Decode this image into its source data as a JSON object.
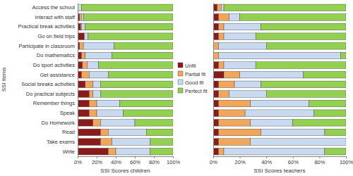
{
  "chart_data": [
    {
      "type": "bar",
      "orientation": "horizontal",
      "stacked": true,
      "legend": "right",
      "xlabel": "SSI Scores children",
      "ylabel": "SSI Items",
      "categories": [
        "Access the school",
        "Interact with staff",
        "Practical break activities",
        "Go on field trips",
        "Participate in classroom",
        "Do mathematics",
        "Do sport activities",
        "Get assistance",
        "Social breaks activities",
        "Do practical subjects",
        "Remember things",
        "Speak",
        "Do Homework",
        "Read",
        "Take exams",
        "Write"
      ],
      "series": [
        {
          "name": "Unfit",
          "color": "#8b1a1a",
          "values": [
            0,
            2,
            3,
            7,
            2,
            4,
            5,
            4,
            8,
            12,
            12,
            12,
            16,
            24,
            24,
            32
          ]
        },
        {
          "name": "Partial fit",
          "color": "#f2a65a",
          "values": [
            0,
            2,
            1,
            0,
            4,
            4,
            5,
            8,
            8,
            4,
            8,
            8,
            8,
            8,
            12,
            8
          ]
        },
        {
          "name": "Good fit",
          "color": "#c9daf0",
          "values": [
            4,
            2,
            4,
            4,
            32,
            28,
            12,
            20,
            8,
            8,
            24,
            28,
            36,
            40,
            40,
            36
          ]
        },
        {
          "name": "Perfect fit",
          "color": "#92d050",
          "values": [
            96,
            94,
            92,
            89,
            62,
            64,
            78,
            68,
            76,
            76,
            56,
            52,
            40,
            28,
            24,
            24
          ]
        }
      ],
      "xlim": [
        0,
        100
      ],
      "xticks": [
        {
          "value": 0,
          "label": "0%"
        },
        {
          "value": 20,
          "label": "20%"
        },
        {
          "value": 40,
          "label": "40%"
        },
        {
          "value": 60,
          "label": "60%"
        },
        {
          "value": 80,
          "label": "80%"
        },
        {
          "value": 100,
          "label": "100%"
        }
      ]
    },
    {
      "type": "bar",
      "orientation": "horizontal",
      "stacked": true,
      "tick_labels": "x",
      "xlabel": "SSI Scores teachers",
      "series": [
        {
          "color": "#8b1a1a",
          "values": [
            3,
            4,
            4,
            4,
            0,
            0,
            4,
            8,
            4,
            4,
            4,
            4,
            4,
            4,
            4,
            4
          ]
        },
        {
          "color": "#f2a65a",
          "values": [
            3,
            8,
            4,
            4,
            4,
            4,
            4,
            12,
            12,
            8,
            24,
            20,
            24,
            32,
            24,
            4
          ]
        },
        {
          "color": "#c9daf0",
          "values": [
            2,
            8,
            28,
            24,
            36,
            92,
            24,
            48,
            20,
            28,
            44,
            52,
            32,
            48,
            72,
            76
          ]
        },
        {
          "color": "#92d050",
          "values": [
            92,
            80,
            64,
            68,
            60,
            4,
            68,
            32,
            64,
            60,
            28,
            24,
            40,
            16,
            0,
            16
          ]
        }
      ],
      "xlim": [
        0,
        100
      ],
      "xticks": [
        {
          "value": 0,
          "label": "0%"
        },
        {
          "value": 20,
          "label": "20%"
        },
        {
          "value": 40,
          "label": "40%"
        },
        {
          "value": 60,
          "label": "60%"
        },
        {
          "value": 80,
          "label": "80%"
        },
        {
          "value": 100,
          "label": "100%"
        }
      ]
    }
  ]
}
